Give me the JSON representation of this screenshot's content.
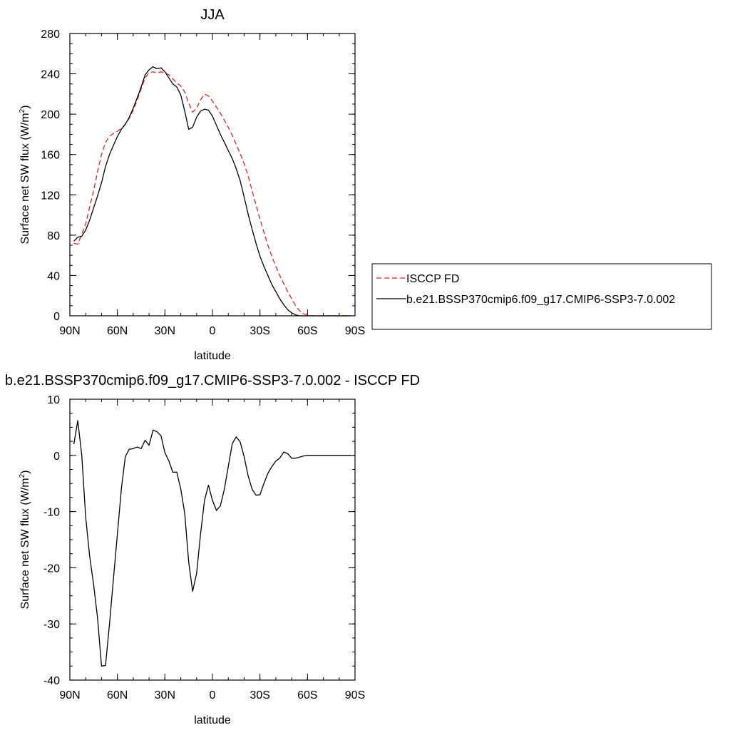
{
  "chart_data": [
    {
      "type": "line",
      "title": "JJA",
      "xlabel": "latitude",
      "ylabel": "Surface net SW flux (W/m",
      "ylabel_sup": "2",
      "ylabel_end": ")",
      "xlim": [
        90,
        -90
      ],
      "ylim": [
        0,
        280
      ],
      "xticks": [
        90,
        60,
        30,
        0,
        -30,
        -60,
        -90
      ],
      "xtick_labels": [
        "90N",
        "60N",
        "30N",
        "0",
        "30S",
        "60S",
        "90S"
      ],
      "yticks": [
        0,
        40,
        80,
        120,
        160,
        200,
        240,
        280
      ],
      "ytick_labels": [
        "0",
        "40",
        "80",
        "120",
        "160",
        "200",
        "240",
        "280"
      ],
      "legend": {
        "placement": "right",
        "entries": [
          "ISCCP FD",
          "b.e21.BSSP370cmip6.f09_g17.CMIP6-SSP3-7.0.002"
        ]
      },
      "series": [
        {
          "name": "ISCCP FD",
          "color": "#e8221e",
          "dash": true,
          "x": [
            87.5,
            85,
            82.5,
            80,
            77.5,
            75,
            72.5,
            70,
            67.5,
            65,
            62.5,
            60,
            57.5,
            55,
            52.5,
            50,
            47.5,
            45,
            42.5,
            40,
            37.5,
            35,
            32.5,
            30,
            27.5,
            25,
            22.5,
            20,
            17.5,
            15,
            12.5,
            10,
            7.5,
            5,
            2.5,
            0,
            -2.5,
            -5,
            -7.5,
            -10,
            -12.5,
            -15,
            -17.5,
            -20,
            -22.5,
            -25,
            -27.5,
            -30,
            -32.5,
            -35,
            -37.5,
            -40,
            -42.5,
            -45,
            -47.5,
            -50,
            -52.5,
            -55,
            -57.5,
            -60,
            -62.5,
            -65,
            -67.5,
            -70,
            -72.5,
            -75,
            -77.5,
            -80,
            -82.5,
            -85,
            -87.5
          ],
          "y": [
            72,
            71,
            81,
            91,
            108,
            124,
            143,
            160,
            172,
            178,
            181,
            183,
            186,
            190,
            196,
            204,
            214,
            225,
            236,
            241,
            242,
            241,
            242,
            241,
            239,
            235,
            231,
            228,
            222,
            211,
            202,
            206,
            214,
            220,
            218,
            213,
            207,
            201,
            194,
            187,
            179,
            170,
            161,
            151,
            139,
            124,
            110,
            96,
            83,
            70,
            59,
            49,
            40,
            32,
            24,
            17,
            10,
            5,
            2,
            1,
            0,
            0,
            0,
            0,
            0,
            0,
            0,
            0,
            0,
            0,
            0
          ]
        },
        {
          "name": "b.e21.BSSP370cmip6.f09_g17.CMIP6-SSP3-7.0.002",
          "color": "#000000",
          "dash": false,
          "x": [
            87.5,
            85,
            82.5,
            80,
            77.5,
            75,
            72.5,
            70,
            67.5,
            65,
            62.5,
            60,
            57.5,
            55,
            52.5,
            50,
            47.5,
            45,
            42.5,
            40,
            37.5,
            35,
            32.5,
            30,
            27.5,
            25,
            22.5,
            20,
            17.5,
            15,
            12.5,
            10,
            7.5,
            5,
            2.5,
            0,
            -2.5,
            -5,
            -7.5,
            -10,
            -12.5,
            -15,
            -17.5,
            -20,
            -22.5,
            -25,
            -27.5,
            -30,
            -32.5,
            -35,
            -37.5,
            -40,
            -42.5,
            -45,
            -47.5,
            -50,
            -52.5,
            -55,
            -57.5,
            -60,
            -62.5,
            -65,
            -67.5,
            -70,
            -72.5,
            -75,
            -77.5,
            -80,
            -82.5,
            -85,
            -87.5
          ],
          "y": [
            74,
            78,
            79,
            85,
            95,
            107,
            119,
            132,
            148,
            160,
            169,
            178,
            185,
            190,
            197,
            206,
            216,
            227,
            239,
            244,
            247,
            245,
            246,
            242,
            236,
            230,
            227,
            219,
            203,
            185,
            187,
            197,
            203,
            205,
            204,
            198,
            189,
            180,
            172,
            164,
            156,
            146,
            134,
            118,
            101,
            86,
            72,
            59,
            49,
            40,
            31,
            24,
            17,
            11,
            6,
            3,
            1,
            0,
            0,
            0,
            0,
            0,
            0,
            0,
            0,
            0,
            0,
            0,
            0,
            0,
            0
          ]
        }
      ]
    },
    {
      "type": "line",
      "title": "b.e21.BSSP370cmip6.f09_g17.CMIP6-SSP3-7.0.002 - ISCCP FD",
      "xlabel": "latitude",
      "ylabel": "Surface net SW flux (W/m",
      "ylabel_sup": "2",
      "ylabel_end": ")",
      "xlim": [
        90,
        -90
      ],
      "ylim": [
        -40,
        10
      ],
      "xticks": [
        90,
        60,
        30,
        0,
        -30,
        -60,
        -90
      ],
      "xtick_labels": [
        "90N",
        "60N",
        "30N",
        "0",
        "30S",
        "60S",
        "90S"
      ],
      "yticks": [
        -40,
        -30,
        -20,
        -10,
        0,
        10
      ],
      "ytick_labels": [
        "-40",
        "-30",
        "-20",
        "-10",
        "0",
        "10"
      ],
      "series": [
        {
          "color": "#000000",
          "dash": false,
          "x": [
            87.5,
            85,
            82.5,
            80,
            77.5,
            75,
            72.5,
            70,
            67.5,
            65,
            62.5,
            60,
            57.5,
            55,
            52.5,
            50,
            47.5,
            45,
            42.5,
            40,
            37.5,
            35,
            32.5,
            30,
            27.5,
            25,
            22.5,
            20,
            17.5,
            15,
            12.5,
            10,
            7.5,
            5,
            2.5,
            0,
            -2.5,
            -5,
            -7.5,
            -10,
            -12.5,
            -15,
            -17.5,
            -20,
            -22.5,
            -25,
            -27.5,
            -30,
            -32.5,
            -35,
            -37.5,
            -40,
            -42.5,
            -45,
            -47.5,
            -50,
            -52.5,
            -55,
            -57.5,
            -60,
            -62.5,
            -65,
            -67.5,
            -70,
            -72.5,
            -75,
            -77.5,
            -80,
            -82.5,
            -85,
            -87.5
          ],
          "y": [
            2,
            6.2,
            0,
            -11,
            -18,
            -23,
            -29,
            -37.5,
            -37.4,
            -30,
            -22,
            -14,
            -6,
            -0.2,
            1.1,
            1.2,
            1.5,
            1.2,
            2.7,
            1.8,
            4.5,
            4.2,
            3.5,
            0.5,
            -1,
            -3,
            -3,
            -6,
            -10.3,
            -19,
            -24.2,
            -21,
            -14,
            -8,
            -5.3,
            -8,
            -9.8,
            -9,
            -6,
            -2,
            2.1,
            3.3,
            2.4,
            -0.2,
            -3.6,
            -6,
            -7.1,
            -7,
            -5,
            -3.2,
            -2,
            -1,
            -0.5,
            0.6,
            0.3,
            -0.5,
            -0.5,
            -0.3,
            -0.1,
            0,
            0,
            0,
            0,
            0,
            0,
            0,
            0,
            0,
            0,
            0,
            0
          ]
        }
      ]
    }
  ]
}
